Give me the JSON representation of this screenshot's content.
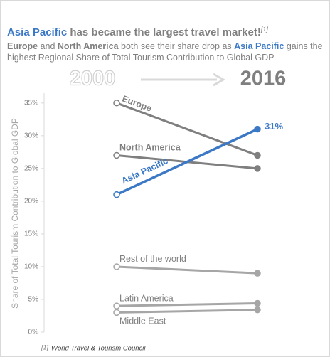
{
  "chart_data": {
    "type": "slope",
    "title": [
      {
        "text": "Asia Pacific",
        "color": "#3b78c6"
      },
      {
        "text": " has became the largest travel market!",
        "color": "#7f7f7f"
      }
    ],
    "title_ref": "[1]",
    "subtitle": [
      {
        "text": "Europe",
        "bold": true,
        "color": "#7f7f7f"
      },
      {
        "text": " and ",
        "bold": false,
        "color": "#7f7f7f"
      },
      {
        "text": "North America",
        "bold": true,
        "color": "#7f7f7f"
      },
      {
        "text": " both see their share drop as ",
        "bold": false,
        "color": "#7f7f7f"
      },
      {
        "text": "Asia Pacific",
        "bold": true,
        "color": "#3b78c6"
      },
      {
        "text": " gains the highest Regional Share of Total Tourism Contribution to Global GDP",
        "bold": false,
        "color": "#7f7f7f"
      }
    ],
    "categories": [
      "2000",
      "2016"
    ],
    "category_colors": [
      "#d0d0d0",
      "#7f7f7f"
    ],
    "y_label": "Share of Total Tourism Contribution to Global GDP",
    "ylim": [
      0,
      36.5
    ],
    "yticks": [
      {
        "value": 0,
        "label": "0%"
      },
      {
        "value": 5,
        "label": "5%"
      },
      {
        "value": 10,
        "label": "10%"
      },
      {
        "value": 15,
        "label": "15%"
      },
      {
        "value": 20,
        "label": "20%"
      },
      {
        "value": 25,
        "label": "25%"
      },
      {
        "value": 30,
        "label": "30%"
      },
      {
        "value": 35,
        "label": "35%"
      }
    ],
    "grid": false,
    "series": [
      {
        "name": "Europe",
        "color": "#7f7f7f",
        "values": [
          35,
          27
        ]
      },
      {
        "name": "North America",
        "color": "#7f7f7f",
        "values": [
          27,
          25
        ]
      },
      {
        "name": "Asia Pacific",
        "color": "#3b78c6",
        "values": [
          21,
          31
        ],
        "value_labels": [
          null,
          "31%"
        ]
      },
      {
        "name": "Rest of the world",
        "color": "#a6a6a6",
        "values": [
          10,
          9
        ]
      },
      {
        "name": "Latin America",
        "color": "#a6a6a6",
        "values": [
          4,
          4.4
        ]
      },
      {
        "name": "Middle East",
        "color": "#a6a6a6",
        "values": [
          3,
          3.4
        ]
      }
    ],
    "footnote_ref": "[1]",
    "footnote": "World Travel & Tourism Council"
  }
}
